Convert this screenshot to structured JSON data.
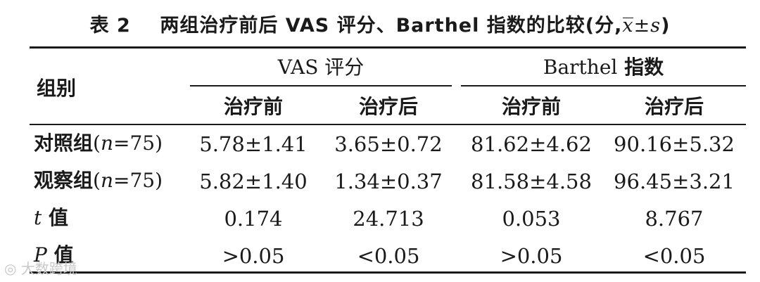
{
  "caption": {
    "label": "表 2",
    "title": "两组治疗前后 VAS 评分、Barthel 指数的比较(分,",
    "stat_mean": "x",
    "stat_rest": "±s",
    "close": ")"
  },
  "header": {
    "group_label": "组别",
    "vas_group": "VAS 评分",
    "barthel_group_latin": "Barthel",
    "barthel_group_cjk": "指数",
    "subcols": [
      "治疗前",
      "治疗后",
      "治疗前",
      "治疗后"
    ]
  },
  "rows": [
    {
      "label": "对照组",
      "n_var": "n",
      "n_rest": "=75",
      "values": [
        "5.78±1.41",
        "3.65±0.72",
        "81.62±4.62",
        "90.16±5.32"
      ]
    },
    {
      "label": "观察组",
      "n_var": "n",
      "n_rest": "=75",
      "values": [
        "5.82±1.40",
        "1.34±0.37",
        "81.58±4.58",
        "96.45±3.21"
      ]
    },
    {
      "label_var": "t",
      "label": "值",
      "values": [
        "0.174",
        "24.713",
        "0.053",
        "8.767"
      ]
    },
    {
      "label_var": "P",
      "label": "值",
      "values": [
        ">0.05",
        "<0.05",
        ">0.05",
        "<0.05"
      ]
    }
  ],
  "watermark": "大数跨境"
}
